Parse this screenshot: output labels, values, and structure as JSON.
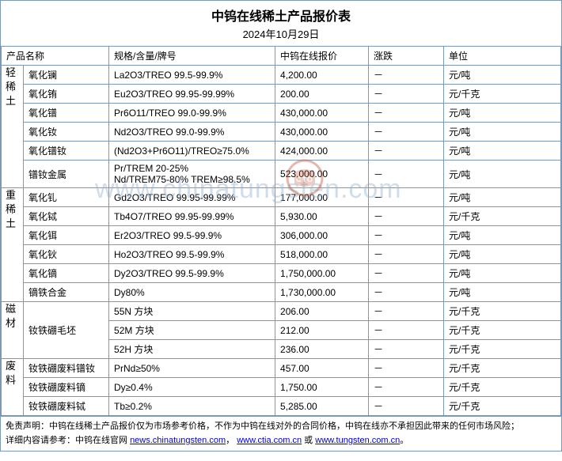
{
  "title": "中钨在线稀土产品报价表",
  "date": "2024年10月29日",
  "columns": {
    "name": "产品名称",
    "spec": "规格/含量/牌号",
    "price": "中钨在线报价",
    "change": "涨跌",
    "unit": "单位"
  },
  "groups": [
    {
      "label": "轻稀土",
      "rows": [
        {
          "name": "氧化镧",
          "spec": "La2O3/TREO 99.5-99.9%",
          "price": "4,200.00",
          "change": "－",
          "unit": "元/吨"
        },
        {
          "name": "氧化铕",
          "spec": "Eu2O3/TREO 99.95-99.99%",
          "price": "200.00",
          "change": "－",
          "unit": "元/千克"
        },
        {
          "name": "氧化镨",
          "spec": "Pr6O11/TREO 99.0-99.9%",
          "price": "430,000.00",
          "change": "－",
          "unit": "元/吨"
        },
        {
          "name": "氧化钕",
          "spec": "Nd2O3/TREO 99.0-99.9%",
          "price": "430,000.00",
          "change": "－",
          "unit": "元/吨"
        },
        {
          "name": "氧化镨钕",
          "spec": "(Nd2O3+Pr6O11)/TREO≥75.0%",
          "price": "424,000.00",
          "change": "－",
          "unit": "元/吨"
        },
        {
          "name": "镨钕金属",
          "spec": "Pr/TREM 20-25%\nNd/TREM75-80% TREM≥98.5%",
          "price": "523,000.00",
          "change": "－",
          "unit": "元/吨"
        }
      ]
    },
    {
      "label": "重稀土",
      "rows": [
        {
          "name": "氧化钆",
          "spec": "Gd2O3/TREO 99.95-99.99%",
          "price": "177,000.00",
          "change": "－",
          "unit": "元/吨"
        },
        {
          "name": "氧化铽",
          "spec": "Tb4O7/TREO 99.95-99.99%",
          "price": "5,930.00",
          "change": "－",
          "unit": "元/千克"
        },
        {
          "name": "氧化铒",
          "spec": "Er2O3/TREO 99.5-99.9%",
          "price": "306,000.00",
          "change": "－",
          "unit": "元/吨"
        },
        {
          "name": "氧化钬",
          "spec": "Ho2O3/TREO 99.5-99.9%",
          "price": "518,000.00",
          "change": "－",
          "unit": "元/吨"
        },
        {
          "name": "氧化镝",
          "spec": "Dy2O3/TREO 99.5-99.9%",
          "price": "1,750,000.00",
          "change": "－",
          "unit": "元/吨"
        },
        {
          "name": "镝铁合金",
          "spec": "Dy80%",
          "price": "1,730,000.00",
          "change": "－",
          "unit": "元/吨"
        }
      ]
    },
    {
      "label": "磁材",
      "rows": [
        {
          "name": "钕铁硼毛坯",
          "name_rowspan": 3,
          "spec": "55N 方块",
          "price": "206.00",
          "change": "－",
          "unit": "元/千克"
        },
        {
          "spec": "52M 方块",
          "price": "212.00",
          "change": "－",
          "unit": "元/千克"
        },
        {
          "spec": "52H 方块",
          "price": "236.00",
          "change": "－",
          "unit": "元/千克"
        }
      ]
    },
    {
      "label": "废料",
      "rows": [
        {
          "name": "钕铁硼废料镨钕",
          "spec": "PrNd≥50%",
          "price": "457.00",
          "change": "－",
          "unit": "元/千克"
        },
        {
          "name": "钕铁硼废料镝",
          "spec": "Dy≥0.4%",
          "price": "1,750.00",
          "change": "－",
          "unit": "元/千克"
        },
        {
          "name": "钕铁硼废料铽",
          "spec": "Tb≥0.2%",
          "price": "5,285.00",
          "change": "－",
          "unit": "元/千克"
        }
      ]
    }
  ],
  "footer": {
    "line1_prefix": "免责声明：中钨在线稀土产品报价仅为市场参考价格，不作为中钨在线对外的合同价格，中钨在线亦不承担因此带来的任何市场风险；",
    "line2_prefix": "详细内容请参考：中钨在线官网 ",
    "link1_text": "news.chinatungsten.com",
    "sep1": "，",
    "link2_text": "www.ctia.com.cn",
    "sep2": " 或 ",
    "link3_text": "www.tungsten.com.cn",
    "suffix": "。"
  },
  "watermark_text": "www.chinatungsten.com",
  "colors": {
    "border": "#7a98b8",
    "link": "#0000cc",
    "watermark": "rgba(150,180,210,0.45)"
  }
}
